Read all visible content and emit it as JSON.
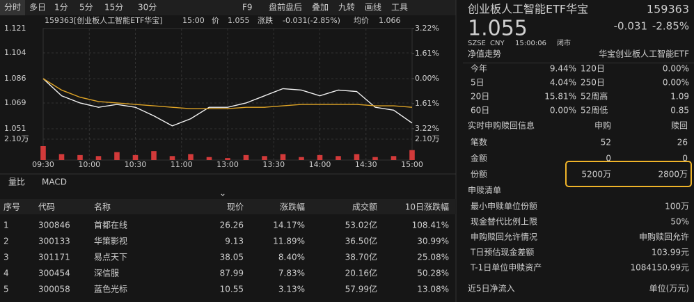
{
  "toolbar": {
    "left": [
      "分时",
      "多日",
      "1分",
      "5分",
      "15分",
      "30分"
    ],
    "right": [
      "F9",
      "盘前盘后",
      "叠加",
      "九转",
      "画线",
      "工具"
    ]
  },
  "chart_header": {
    "name": "159363[创业板人工智能ETF华宝]",
    "time": "15:00",
    "price_label": "价",
    "price": "1.055",
    "change_label": "涨跌",
    "change": "-0.031(-2.85%)",
    "avg_label": "均价",
    "avg": "1.066"
  },
  "chart_data": {
    "type": "line",
    "x": [
      0,
      12,
      24,
      36,
      48,
      60,
      72,
      84,
      96,
      108,
      120,
      132,
      144,
      156,
      168,
      180,
      192,
      204,
      216,
      228,
      240
    ],
    "xlim": [
      0,
      240
    ],
    "xticks": [
      {
        "value": 0,
        "label": "09:30"
      },
      {
        "value": 30,
        "label": "10:00"
      },
      {
        "value": 60,
        "label": "10:30"
      },
      {
        "value": 90,
        "label": "11:00"
      },
      {
        "value": 120,
        "label": "13:00"
      },
      {
        "value": 150,
        "label": "13:30"
      },
      {
        "value": 180,
        "label": "14:00"
      },
      {
        "value": 210,
        "label": "14:30"
      },
      {
        "value": 240,
        "label": "15:00"
      }
    ],
    "ylim": [
      1.051,
      1.121
    ],
    "yticks": [
      1.121,
      1.104,
      1.086,
      1.069,
      1.051
    ],
    "y2lim": [
      -3.22,
      3.22
    ],
    "y2ticks": [
      {
        "value": 3.22,
        "label": "3.22%"
      },
      {
        "value": 1.61,
        "label": "1.61%"
      },
      {
        "value": 0,
        "label": "0.00%"
      },
      {
        "value": -1.61,
        "label": "1.61%"
      },
      {
        "value": -3.22,
        "label": "3.22%"
      }
    ],
    "grid": true,
    "series": [
      {
        "name": "价",
        "color": "#f2f2f2",
        "values": [
          1.086,
          1.074,
          1.069,
          1.066,
          1.068,
          1.066,
          1.06,
          1.053,
          1.058,
          1.066,
          1.066,
          1.069,
          1.074,
          1.079,
          1.078,
          1.074,
          1.078,
          1.077,
          1.066,
          1.064,
          1.055
        ]
      },
      {
        "name": "均价",
        "color": "#e0a526",
        "values": [
          1.086,
          1.078,
          1.073,
          1.07,
          1.069,
          1.068,
          1.067,
          1.066,
          1.065,
          1.065,
          1.065,
          1.066,
          1.066,
          1.067,
          1.068,
          1.068,
          1.068,
          1.068,
          1.067,
          1.067,
          1.066
        ]
      }
    ],
    "volume": {
      "color": "#d23a3a",
      "values": [
        1.4,
        0.6,
        0.5,
        0.4,
        0.8,
        0.5,
        0.9,
        0.4,
        0.6,
        0.3,
        0.2,
        0.5,
        0.4,
        0.6,
        0.3,
        0.5,
        0.4,
        0.6,
        0.3,
        0.4,
        1.0
      ]
    },
    "vol_ylim": [
      0,
      2.1
    ],
    "vol_yticks": [
      {
        "value": 2.1,
        "label": "2.10万"
      }
    ]
  },
  "tabs": [
    "量比",
    "MACD"
  ],
  "table": {
    "headers": [
      "序号",
      "代码",
      "名称",
      "现价",
      "涨跌幅",
      "成交额",
      "10日涨跌幅"
    ],
    "rows": [
      [
        "1",
        "300846",
        "首都在线",
        "26.26",
        "14.17%",
        "53.02亿",
        "108.41%"
      ],
      [
        "2",
        "300133",
        "华策影视",
        "9.13",
        "11.89%",
        "36.50亿",
        "30.99%"
      ],
      [
        "3",
        "301171",
        "易点天下",
        "38.05",
        "8.40%",
        "38.70亿",
        "25.08%"
      ],
      [
        "4",
        "300454",
        "深信服",
        "87.99",
        "7.83%",
        "20.16亿",
        "50.28%"
      ],
      [
        "5",
        "300058",
        "蓝色光标",
        "10.55",
        "3.13%",
        "57.99亿",
        "13.08%"
      ]
    ]
  },
  "quote": {
    "name": "创业板人工智能ETF华宝",
    "code": "159363",
    "price": "1.055",
    "change": "-0.031",
    "pct": "-2.85%",
    "meta": [
      "SZSE",
      "CNY",
      "15:00:06",
      "闭市"
    ]
  },
  "nav": {
    "title": "净值走势",
    "fund": "华宝创业板人工智能ETF",
    "rows": [
      [
        "今年",
        "9.44%",
        "120日",
        "0.00%"
      ],
      [
        "5日",
        "4.04%",
        "250日",
        "0.00%"
      ],
      [
        "20日",
        "15.81%",
        "52周高",
        "1.09"
      ],
      [
        "60日",
        "0.00%",
        "52周低",
        "0.85"
      ]
    ]
  },
  "subscription": {
    "title": "实时申购赎回信息",
    "cols": [
      "申购",
      "赎回"
    ],
    "rows": [
      [
        "笔数",
        "52",
        "26"
      ],
      [
        "金额",
        "0",
        "0"
      ],
      [
        "份额",
        "5200万",
        "2800万"
      ]
    ]
  },
  "list": {
    "title": "申赎清单",
    "rows": [
      [
        "最小申赎单位份额",
        "100万"
      ],
      [
        "现金替代比例上限",
        "50%"
      ],
      [
        "申购赎回允许情况",
        "申购赎回允许"
      ],
      [
        "T日预估现金差额",
        "103.99元"
      ],
      [
        "T-1日单位申赎资产",
        "1084150.99元"
      ]
    ]
  },
  "flow": {
    "title": "近5日净流入",
    "unit": "单位(万元)"
  }
}
